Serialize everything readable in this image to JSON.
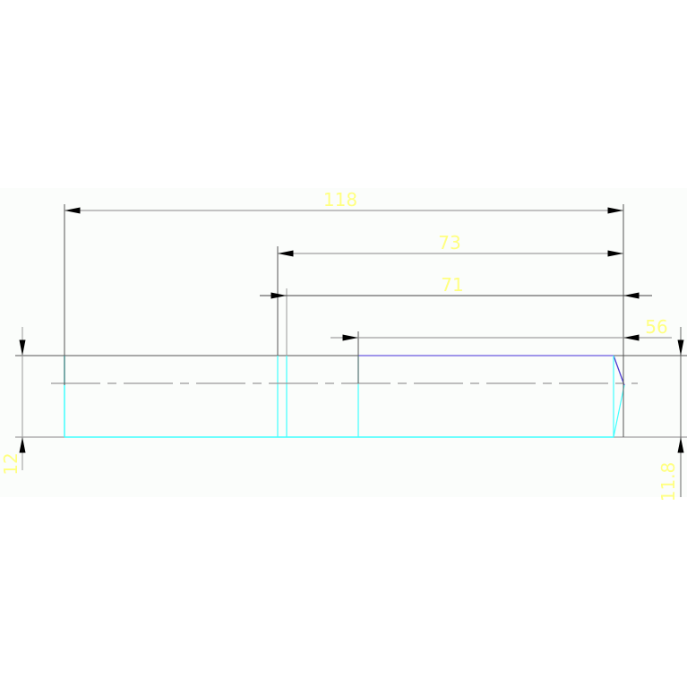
{
  "drawing": {
    "dimensions": [
      {
        "id": "overall-length",
        "label": "118"
      },
      {
        "id": "length-73",
        "label": "73"
      },
      {
        "id": "length-71",
        "label": "71"
      },
      {
        "id": "length-56",
        "label": "56"
      },
      {
        "id": "height-left",
        "label": "12"
      },
      {
        "id": "height-right",
        "label": "11.8"
      }
    ],
    "colors": {
      "dimension_text": "#ffff80",
      "dimension_line": "#000000",
      "outline_cyan": "#40ffff",
      "outline_blue": "#6a5ae0",
      "background": "#fbfdfb"
    }
  }
}
